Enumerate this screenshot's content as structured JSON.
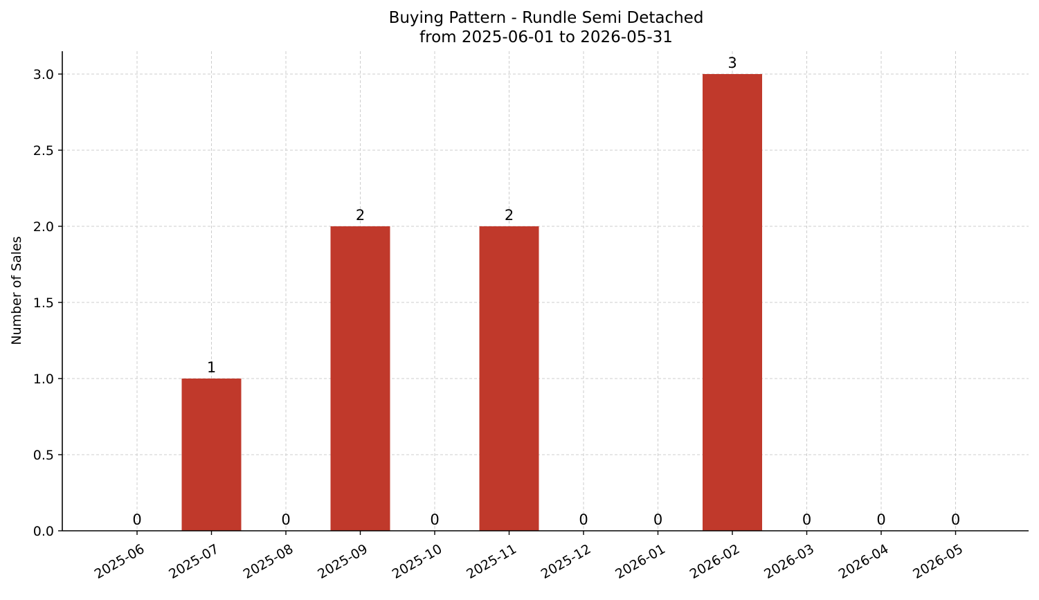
{
  "chart_data": {
    "type": "bar",
    "title": "Buying Pattern - Rundle Semi Detached",
    "subtitle": "from 2025-06-01 to 2026-05-31",
    "xlabel": "",
    "ylabel": "Number of Sales",
    "categories": [
      "2025-06",
      "2025-07",
      "2025-08",
      "2025-09",
      "2025-10",
      "2025-11",
      "2025-12",
      "2026-01",
      "2026-02",
      "2026-03",
      "2026-04",
      "2026-05"
    ],
    "values": [
      0,
      1,
      0,
      2,
      0,
      2,
      0,
      0,
      3,
      0,
      0,
      0
    ],
    "data_labels": [
      "0",
      "1",
      "0",
      "2",
      "0",
      "2",
      "0",
      "0",
      "3",
      "0",
      "0",
      "0"
    ],
    "y_ticks": [
      "0.0",
      "0.5",
      "1.0",
      "1.5",
      "2.0",
      "2.5",
      "3.0"
    ],
    "ylim": [
      0,
      3.15
    ],
    "bar_color": "#c0392b",
    "grid": true,
    "legend": "none"
  }
}
